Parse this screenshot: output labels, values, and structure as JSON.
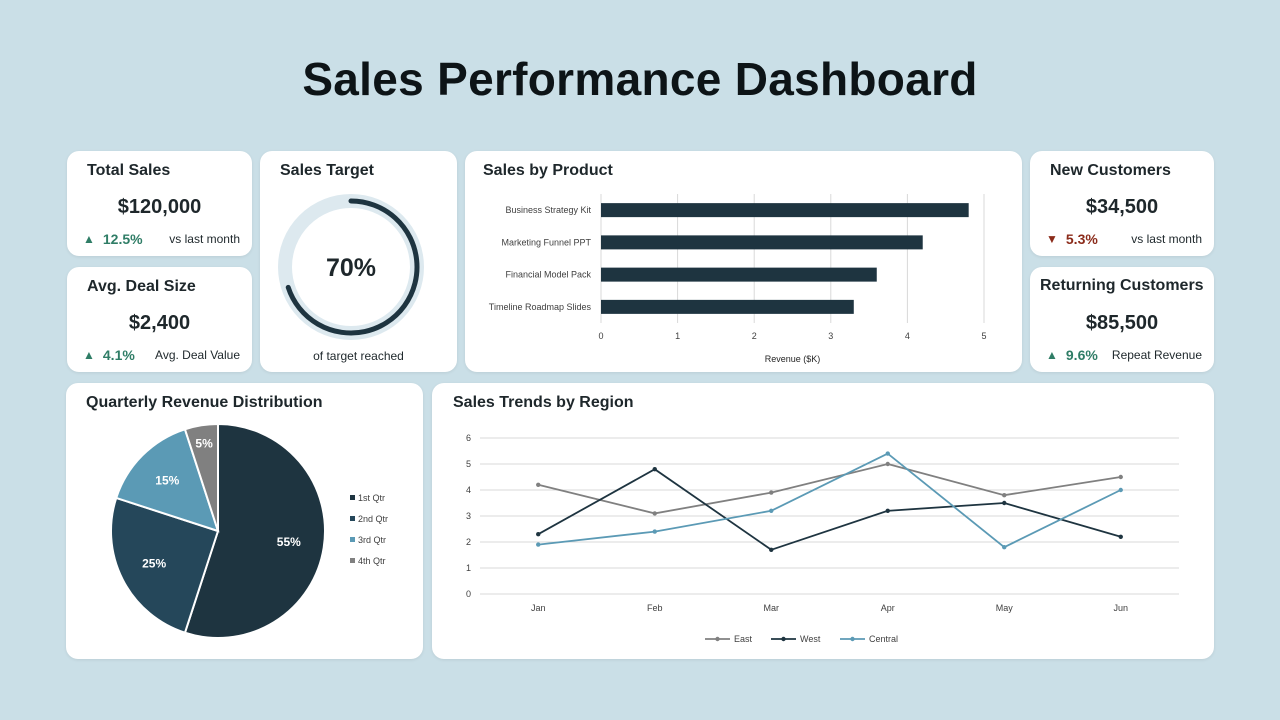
{
  "title": "Sales Performance Dashboard",
  "colors": {
    "dark": "#1e3440",
    "mid": "#25475a",
    "light": "#5b9ab5",
    "gray": "#808080",
    "up": "#2f7d66",
    "down": "#8b2b1a"
  },
  "total_sales": {
    "title": "Total Sales",
    "value": "$120,000",
    "trend_icon": "up-triangle-icon",
    "trend": "12.5%",
    "note": "vs last month"
  },
  "avg_deal": {
    "title": "Avg. Deal Size",
    "value": "$2,400",
    "trend_icon": "up-triangle-icon",
    "trend": "4.1%",
    "note": "Avg. Deal Value"
  },
  "sales_target": {
    "title": "Sales Target",
    "value": "70%",
    "progress": 0.7,
    "note": "of target reached"
  },
  "new_customers": {
    "title": "New Customers",
    "value": "$34,500",
    "trend_icon": "down-triangle-icon",
    "trend": "5.3%",
    "note": "vs last month"
  },
  "returning_customers": {
    "title": "Returning Customers",
    "value": "$85,500",
    "trend_icon": "up-triangle-icon",
    "trend": "9.6%",
    "note": "Repeat Revenue"
  },
  "product_panel": {
    "title": "Sales by Product"
  },
  "pie_panel": {
    "title": "Quarterly Revenue Distribution"
  },
  "trend_panel": {
    "title": "Sales Trends by Region"
  },
  "chart_data": [
    {
      "type": "bar",
      "orientation": "horizontal",
      "title": "Sales by Product",
      "categories": [
        "Timeline Roadmap Slides",
        "Financial Model Pack",
        "Marketing Funnel PPT",
        "Business Strategy Kit"
      ],
      "values": [
        3.3,
        3.6,
        4.2,
        4.8
      ],
      "xlabel": "Revenue ($K)",
      "xlim": [
        0,
        5
      ],
      "xticks": [
        "0",
        "1",
        "2",
        "3",
        "4",
        "5"
      ],
      "grid": true
    },
    {
      "type": "pie",
      "title": "Quarterly Revenue Distribution",
      "categories": [
        "1st Qtr",
        "2nd Qtr",
        "3rd Qtr",
        "4th Qtr"
      ],
      "values": [
        55,
        25,
        15,
        5
      ],
      "labels": [
        "55%",
        "25%",
        "15%",
        "5%"
      ],
      "legend": "right"
    },
    {
      "type": "line",
      "title": "Sales Trends by Region",
      "categories": [
        "Jan",
        "Feb",
        "Mar",
        "Apr",
        "May",
        "Jun"
      ],
      "series": [
        {
          "name": "East",
          "values": [
            4.2,
            3.1,
            3.9,
            5.0,
            3.8,
            4.5
          ]
        },
        {
          "name": "West",
          "values": [
            2.3,
            4.8,
            1.7,
            3.2,
            3.5,
            2.2
          ]
        },
        {
          "name": "Central",
          "values": [
            1.9,
            2.4,
            3.2,
            5.4,
            1.8,
            4.0
          ]
        }
      ],
      "ylim": [
        0,
        6
      ],
      "yticks": [
        "0",
        "1",
        "2",
        "3",
        "4",
        "5",
        "6"
      ],
      "grid": true,
      "legend": "bottom"
    }
  ]
}
